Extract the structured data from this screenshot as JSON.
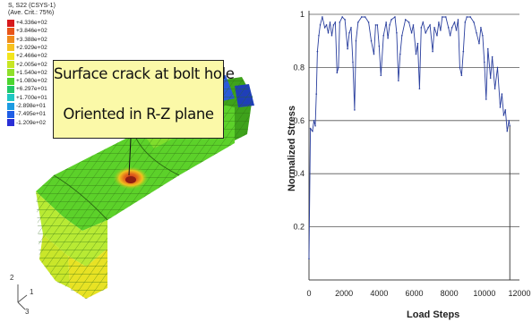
{
  "fea_model": {
    "legend": {
      "title_lines": [
        "S, S22 (CSYS-1)",
        "(Ave. Crit.: 75%)"
      ],
      "entries": [
        {
          "label": "+4.336e+02",
          "color": "#d7191c"
        },
        {
          "label": "+3.846e+02",
          "color": "#e8551a"
        },
        {
          "label": "+3.388e+02",
          "color": "#f08c1c"
        },
        {
          "label": "+2.929e+02",
          "color": "#f7c21f"
        },
        {
          "label": "+2.466e+02",
          "color": "#f2e51c"
        },
        {
          "label": "+2.005e+02",
          "color": "#c8e624"
        },
        {
          "label": "+1.540e+02",
          "color": "#8fe02a"
        },
        {
          "label": "+1.080e+02",
          "color": "#4cd62e"
        },
        {
          "label": "+6.297e+01",
          "color": "#20c86a"
        },
        {
          "label": "+1.700e+01",
          "color": "#1fc7c3"
        },
        {
          "label": "-2.898e+01",
          "color": "#1c9be2"
        },
        {
          "label": "-7.495e+01",
          "color": "#1f5ee6"
        },
        {
          "label": "-1.209e+02",
          "color": "#2a2fd6"
        }
      ]
    },
    "callout": {
      "line1": "Surface crack at bolt hole",
      "line2": "Oriented in R-Z plane"
    },
    "triad": {
      "axis_up": "2",
      "axis_side": "1",
      "axis_down": "3"
    },
    "colors": {
      "mesh": "#5cd12a",
      "mesh_dark": "#3ea21b",
      "crack": "#c0391b",
      "hot": "#f0a11e"
    }
  },
  "chart_data": {
    "type": "line",
    "xlabel": "Load Steps",
    "ylabel": "Normalized Stress",
    "xlim": [
      0,
      12000
    ],
    "ylim": [
      0,
      1
    ],
    "x_ticks": [
      0,
      2000,
      4000,
      6000,
      8000,
      10000,
      12000
    ],
    "y_ticks": [
      0.2,
      0.4,
      0.6,
      0.8,
      1
    ],
    "grid": "horizontal",
    "series_color": "#2a3f9e",
    "points": [
      [
        0,
        0.08
      ],
      [
        80,
        0.57
      ],
      [
        200,
        0.56
      ],
      [
        280,
        0.6
      ],
      [
        360,
        0.58
      ],
      [
        420,
        0.7
      ],
      [
        480,
        0.86
      ],
      [
        560,
        0.92
      ],
      [
        640,
        0.96
      ],
      [
        760,
        0.99
      ],
      [
        900,
        0.95
      ],
      [
        1000,
        0.96
      ],
      [
        1100,
        0.93
      ],
      [
        1200,
        0.97
      ],
      [
        1300,
        0.92
      ],
      [
        1400,
        0.96
      ],
      [
        1500,
        0.97
      ],
      [
        1600,
        0.78
      ],
      [
        1680,
        0.8
      ],
      [
        1750,
        0.97
      ],
      [
        1900,
        0.99
      ],
      [
        2050,
        0.98
      ],
      [
        2200,
        0.87
      ],
      [
        2300,
        0.93
      ],
      [
        2400,
        0.95
      ],
      [
        2500,
        0.82
      ],
      [
        2600,
        0.64
      ],
      [
        2680,
        0.9
      ],
      [
        2800,
        0.97
      ],
      [
        3000,
        0.99
      ],
      [
        3200,
        0.99
      ],
      [
        3400,
        0.97
      ],
      [
        3550,
        0.9
      ],
      [
        3700,
        0.85
      ],
      [
        3800,
        0.96
      ],
      [
        3900,
        0.96
      ],
      [
        4000,
        0.88
      ],
      [
        4100,
        0.77
      ],
      [
        4250,
        0.92
      ],
      [
        4400,
        0.97
      ],
      [
        4500,
        0.91
      ],
      [
        4600,
        0.96
      ],
      [
        4700,
        0.98
      ],
      [
        4900,
        0.99
      ],
      [
        5000,
        0.93
      ],
      [
        5100,
        0.75
      ],
      [
        5200,
        0.85
      ],
      [
        5300,
        0.92
      ],
      [
        5500,
        0.98
      ],
      [
        5700,
        0.97
      ],
      [
        5850,
        0.93
      ],
      [
        5950,
        0.96
      ],
      [
        6100,
        0.85
      ],
      [
        6200,
        0.89
      ],
      [
        6300,
        0.72
      ],
      [
        6400,
        0.95
      ],
      [
        6500,
        0.97
      ],
      [
        6650,
        0.93
      ],
      [
        6800,
        0.95
      ],
      [
        6900,
        0.96
      ],
      [
        7050,
        0.86
      ],
      [
        7150,
        0.95
      ],
      [
        7300,
        0.92
      ],
      [
        7400,
        0.97
      ],
      [
        7500,
        0.94
      ],
      [
        7600,
        0.99
      ],
      [
        7800,
        0.99
      ],
      [
        7950,
        0.95
      ],
      [
        8050,
        0.92
      ],
      [
        8150,
        0.95
      ],
      [
        8300,
        0.97
      ],
      [
        8400,
        0.94
      ],
      [
        8500,
        0.98
      ],
      [
        8600,
        0.8
      ],
      [
        8700,
        0.77
      ],
      [
        8800,
        0.86
      ],
      [
        8900,
        0.97
      ],
      [
        9000,
        0.99
      ],
      [
        9200,
        0.99
      ],
      [
        9400,
        0.97
      ],
      [
        9550,
        0.93
      ],
      [
        9700,
        0.89
      ],
      [
        9800,
        0.95
      ],
      [
        9900,
        0.92
      ],
      [
        10000,
        0.82
      ],
      [
        10100,
        0.68
      ],
      [
        10200,
        0.87
      ],
      [
        10350,
        0.76
      ],
      [
        10450,
        0.84
      ],
      [
        10600,
        0.72
      ],
      [
        10750,
        0.8
      ],
      [
        10900,
        0.65
      ],
      [
        11000,
        0.7
      ],
      [
        11100,
        0.62
      ],
      [
        11200,
        0.64
      ],
      [
        11300,
        0.56
      ],
      [
        11400,
        0.6
      ],
      [
        11450,
        0.58
      ]
    ],
    "end_drop_x": 11450
  }
}
